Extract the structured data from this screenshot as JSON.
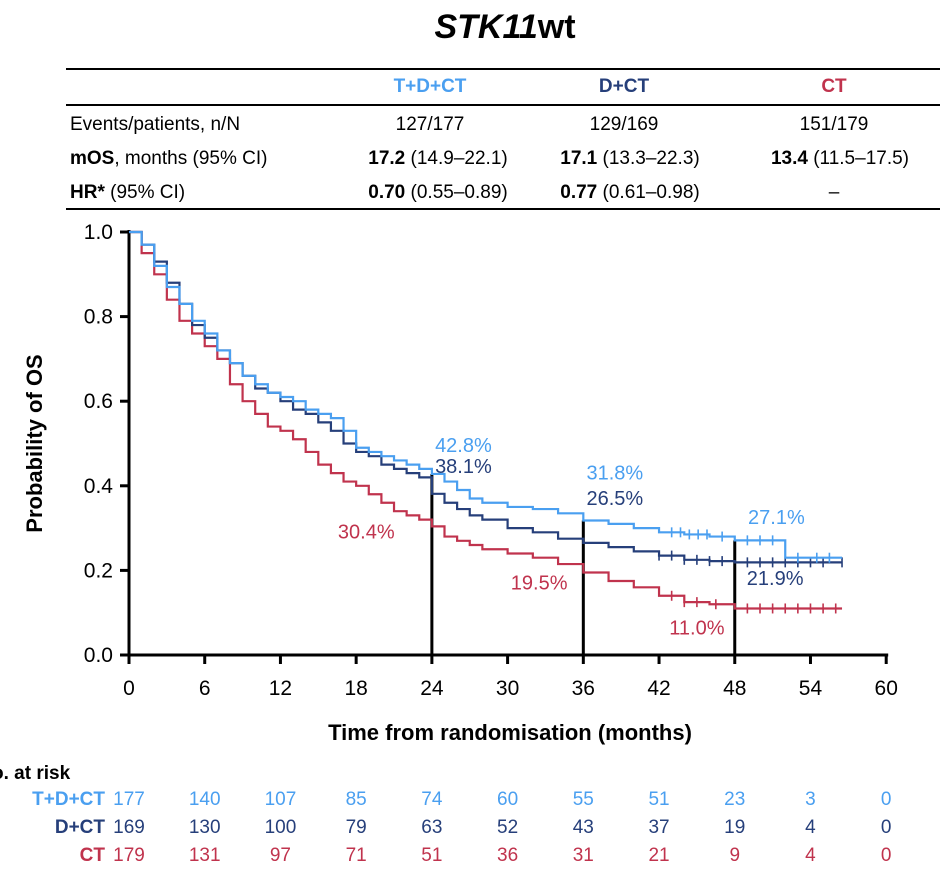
{
  "title": {
    "main": "STK11",
    "suffix": "wt"
  },
  "colors": {
    "tdct": "#4a9ff0",
    "dct": "#263f7a",
    "ct": "#c0334d"
  },
  "table": {
    "arms": [
      "T+D+CT",
      "D+CT",
      "CT"
    ],
    "events_label": "Events/patients, n/N",
    "events": [
      "127/177",
      "129/169",
      "151/179"
    ],
    "mos_label_bold": "mOS",
    "mos_label_rest": ", months (95% CI)",
    "mos_value": [
      "17.2",
      "17.1",
      "13.4"
    ],
    "mos_ci": [
      " (14.9–22.1)",
      " (13.3–22.3)",
      " (11.5–17.5)"
    ],
    "hr_label_bold": "HR*",
    "hr_label_rest": " (95% CI)",
    "hr_value": [
      "0.70",
      "0.77",
      ""
    ],
    "hr_ci": [
      " (0.55–0.89)",
      " (0.61–0.98)",
      "–"
    ]
  },
  "chart_data": {
    "type": "line",
    "title": "STK11wt",
    "xlabel": "Time from randomisation (months)",
    "ylabel": "Probability of OS",
    "xlim": [
      0,
      60
    ],
    "ylim": [
      0,
      1.0
    ],
    "xticks": [
      0,
      6,
      12,
      18,
      24,
      30,
      36,
      42,
      48,
      54,
      60
    ],
    "yticks": [
      0.0,
      0.2,
      0.4,
      0.6,
      0.8,
      1.0
    ],
    "ytick_labels": [
      "0.0",
      "0.2",
      "0.4",
      "0.6",
      "0.8",
      "1.0"
    ],
    "landmarks": [
      24,
      36,
      48
    ],
    "series": [
      {
        "name": "T+D+CT",
        "color": "#4a9ff0",
        "x": [
          0,
          1,
          2,
          3,
          4,
          5,
          6,
          7,
          8,
          9,
          10,
          11,
          12,
          13,
          14,
          15,
          16,
          17,
          18,
          19,
          20,
          21,
          22,
          23,
          24,
          25,
          26,
          27,
          28,
          30,
          32,
          34,
          36,
          38,
          40,
          42,
          44,
          46,
          48,
          50,
          52,
          54,
          56.5
        ],
        "y": [
          1.0,
          0.97,
          0.92,
          0.87,
          0.83,
          0.79,
          0.76,
          0.72,
          0.69,
          0.66,
          0.64,
          0.62,
          0.61,
          0.6,
          0.58,
          0.57,
          0.56,
          0.53,
          0.49,
          0.48,
          0.47,
          0.46,
          0.45,
          0.44,
          0.428,
          0.41,
          0.39,
          0.37,
          0.36,
          0.35,
          0.345,
          0.335,
          0.318,
          0.31,
          0.3,
          0.29,
          0.285,
          0.28,
          0.271,
          0.271,
          0.23,
          0.23,
          0.23
        ],
        "censor_x": [
          43,
          43.7,
          44.4,
          45.1,
          45.8,
          47,
          49,
          50,
          51,
          53,
          54.5,
          55.5
        ]
      },
      {
        "name": "D+CT",
        "color": "#263f7a",
        "x": [
          0,
          1,
          2,
          3,
          4,
          5,
          6,
          7,
          8,
          9,
          10,
          11,
          12,
          13,
          14,
          15,
          16,
          17,
          18,
          19,
          20,
          21,
          22,
          23,
          24,
          25,
          26,
          27,
          28,
          30,
          32,
          34,
          36,
          38,
          40,
          42,
          44,
          46,
          48,
          50,
          52,
          54,
          56.5
        ],
        "y": [
          1.0,
          0.97,
          0.93,
          0.88,
          0.83,
          0.78,
          0.75,
          0.72,
          0.69,
          0.66,
          0.63,
          0.62,
          0.6,
          0.58,
          0.57,
          0.55,
          0.53,
          0.5,
          0.48,
          0.47,
          0.45,
          0.44,
          0.43,
          0.42,
          0.381,
          0.36,
          0.345,
          0.33,
          0.32,
          0.3,
          0.29,
          0.275,
          0.265,
          0.255,
          0.245,
          0.235,
          0.225,
          0.222,
          0.219,
          0.219,
          0.219,
          0.219,
          0.219
        ],
        "censor_x": [
          42,
          43,
          44,
          45,
          46,
          47,
          49,
          50,
          51,
          52,
          53,
          54,
          55,
          56.5
        ]
      },
      {
        "name": "CT",
        "color": "#c0334d",
        "x": [
          0,
          1,
          2,
          3,
          4,
          5,
          6,
          7,
          8,
          9,
          10,
          11,
          12,
          13,
          14,
          15,
          16,
          17,
          18,
          19,
          20,
          21,
          22,
          23,
          24,
          25,
          26,
          27,
          28,
          30,
          32,
          34,
          36,
          38,
          40,
          42,
          44,
          46,
          48,
          50,
          52,
          54,
          56.5
        ],
        "y": [
          1.0,
          0.95,
          0.9,
          0.84,
          0.79,
          0.76,
          0.73,
          0.7,
          0.64,
          0.6,
          0.57,
          0.54,
          0.53,
          0.51,
          0.48,
          0.45,
          0.43,
          0.41,
          0.4,
          0.38,
          0.36,
          0.34,
          0.33,
          0.32,
          0.304,
          0.28,
          0.27,
          0.26,
          0.25,
          0.24,
          0.23,
          0.215,
          0.195,
          0.175,
          0.16,
          0.14,
          0.125,
          0.12,
          0.11,
          0.11,
          0.11,
          0.11,
          0.11
        ],
        "censor_x": [
          43,
          44,
          45,
          46.5,
          49,
          50,
          51,
          52,
          53,
          54,
          55,
          56
        ]
      }
    ],
    "annotations": [
      {
        "series": "T+D+CT",
        "text": "42.8%",
        "x": 26.5,
        "y": 0.48
      },
      {
        "series": "D+CT",
        "text": "38.1%",
        "x": 26.5,
        "y": 0.43
      },
      {
        "series": "CT",
        "text": "30.4%",
        "x": 18.8,
        "y": 0.275
      },
      {
        "series": "T+D+CT",
        "text": "31.8%",
        "x": 38.5,
        "y": 0.415
      },
      {
        "series": "D+CT",
        "text": "26.5%",
        "x": 38.5,
        "y": 0.355
      },
      {
        "series": "CT",
        "text": "19.5%",
        "x": 32.5,
        "y": 0.155
      },
      {
        "series": "T+D+CT",
        "text": "27.1%",
        "x": 51.3,
        "y": 0.31
      },
      {
        "series": "D+CT",
        "text": "21.9%",
        "x": 51.2,
        "y": 0.165
      },
      {
        "series": "CT",
        "text": "11.0%",
        "x": 45.0,
        "y": 0.048
      }
    ]
  },
  "risk_table": {
    "title": "o. at risk",
    "rows": [
      {
        "label": "T+D+CT",
        "color": "#4a9ff0",
        "values": [
          "177",
          "140",
          "107",
          "85",
          "74",
          "60",
          "55",
          "51",
          "23",
          "3",
          "0"
        ]
      },
      {
        "label": "D+CT",
        "color": "#263f7a",
        "values": [
          "169",
          "130",
          "100",
          "79",
          "63",
          "52",
          "43",
          "37",
          "19",
          "4",
          "0"
        ]
      },
      {
        "label": "CT",
        "color": "#c0334d",
        "values": [
          "179",
          "131",
          "97",
          "71",
          "51",
          "36",
          "31",
          "21",
          "9",
          "4",
          "0"
        ]
      }
    ]
  }
}
